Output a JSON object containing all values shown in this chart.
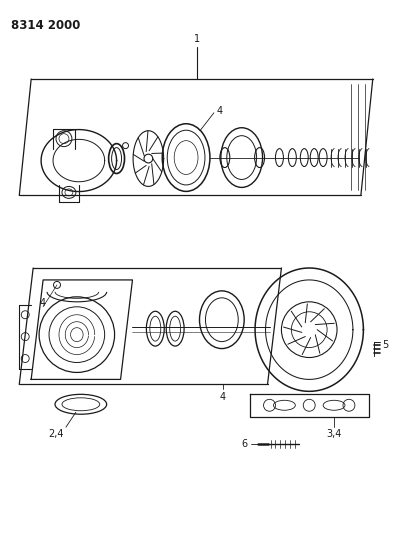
{
  "title_code": "8314 2000",
  "bg_color": "#ffffff",
  "line_color": "#1a1a1a",
  "fig_width": 3.99,
  "fig_height": 5.33,
  "dpi": 100
}
